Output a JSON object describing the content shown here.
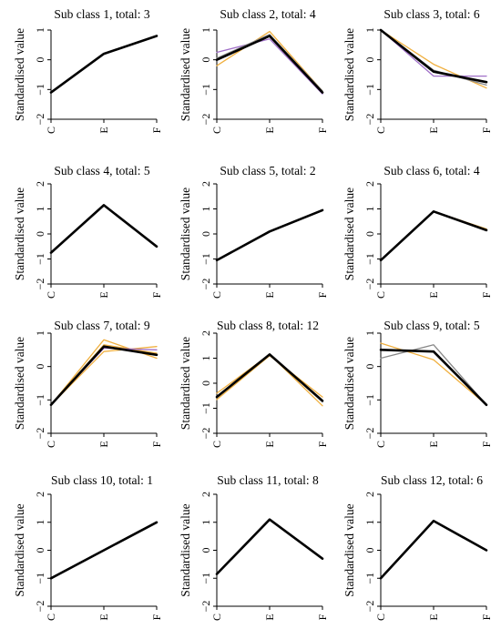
{
  "chart_data": [
    {
      "type": "line",
      "title": "Sub class 1, total: 3",
      "ylabel": "Standardised value",
      "categories": [
        "C",
        "E",
        "F"
      ],
      "yticks": [
        1,
        0,
        -1,
        -2
      ],
      "ylim": [
        -2,
        1
      ],
      "series": [
        {
          "values": [
            -1.1,
            0.2,
            0.8
          ],
          "color": "#f0b040"
        },
        {
          "values": [
            -1.1,
            0.2,
            0.8
          ],
          "color": "#a070c8"
        },
        {
          "values": [
            -1.1,
            0.2,
            0.8
          ],
          "color": "#000000",
          "mean": true
        }
      ]
    },
    {
      "type": "line",
      "title": "Sub class 2, total: 4",
      "ylabel": "Standardised value",
      "categories": [
        "C",
        "E",
        "F"
      ],
      "yticks": [
        1,
        0,
        -1,
        -2
      ],
      "ylim": [
        -2,
        1
      ],
      "series": [
        {
          "values": [
            -0.2,
            0.95,
            -1.05
          ],
          "color": "#f0b040"
        },
        {
          "values": [
            0.25,
            0.7,
            -1.15
          ],
          "color": "#a070c8"
        },
        {
          "values": [
            0.05,
            0.85,
            -1.05
          ],
          "color": "#888888"
        },
        {
          "values": [
            0.0,
            0.8,
            -1.1
          ],
          "color": "#000000",
          "mean": true
        }
      ]
    },
    {
      "type": "line",
      "title": "Sub class 3, total: 6",
      "ylabel": "Standardised value",
      "categories": [
        "C",
        "E",
        "F"
      ],
      "yticks": [
        1,
        0,
        -1,
        -2
      ],
      "ylim": [
        -2,
        1
      ],
      "series": [
        {
          "values": [
            1.0,
            -0.15,
            -0.95
          ],
          "color": "#f0b040"
        },
        {
          "values": [
            1.0,
            -0.55,
            -0.55
          ],
          "color": "#a070c8"
        },
        {
          "values": [
            1.0,
            -0.35,
            -0.85
          ],
          "color": "#888888"
        },
        {
          "values": [
            1.0,
            -0.4,
            -0.75
          ],
          "color": "#000000",
          "mean": true
        }
      ]
    },
    {
      "type": "line",
      "title": "Sub class 4, total: 5",
      "ylabel": "Standardised value",
      "categories": [
        "C",
        "E",
        "F"
      ],
      "yticks": [
        2,
        1,
        0,
        -1,
        -2
      ],
      "ylim": [
        -2,
        2
      ],
      "series": [
        {
          "values": [
            -0.75,
            1.15,
            -0.5
          ],
          "color": "#f0b040"
        },
        {
          "values": [
            -0.75,
            1.15,
            -0.5
          ],
          "color": "#000000",
          "mean": true
        }
      ]
    },
    {
      "type": "line",
      "title": "Sub class 5, total: 2",
      "ylabel": "Standardised value",
      "categories": [
        "C",
        "E",
        "F"
      ],
      "yticks": [
        2,
        1,
        0,
        -1,
        -2
      ],
      "ylim": [
        -2,
        2
      ],
      "series": [
        {
          "values": [
            -1.05,
            0.1,
            0.95
          ],
          "color": "#f0b040"
        },
        {
          "values": [
            -1.05,
            0.1,
            0.95
          ],
          "color": "#000000",
          "mean": true
        }
      ]
    },
    {
      "type": "line",
      "title": "Sub class 6, total: 4",
      "ylabel": "Standardised value",
      "categories": [
        "C",
        "E",
        "F"
      ],
      "yticks": [
        2,
        1,
        0,
        -1,
        -2
      ],
      "ylim": [
        -2,
        2
      ],
      "series": [
        {
          "values": [
            -1.05,
            0.9,
            0.2
          ],
          "color": "#f0b040"
        },
        {
          "values": [
            -1.05,
            0.9,
            0.15
          ],
          "color": "#888888"
        },
        {
          "values": [
            -1.05,
            0.9,
            0.15
          ],
          "color": "#000000",
          "mean": true
        }
      ]
    },
    {
      "type": "line",
      "title": "Sub class 7, total: 9",
      "ylabel": "Standardised value",
      "categories": [
        "C",
        "E",
        "F"
      ],
      "yticks": [
        1,
        0,
        -1,
        -2
      ],
      "ylim": [
        -2,
        1
      ],
      "series": [
        {
          "values": [
            -1.15,
            0.8,
            0.25
          ],
          "color": "#f0b040"
        },
        {
          "values": [
            -1.15,
            0.45,
            0.6
          ],
          "color": "#f0b040"
        },
        {
          "values": [
            -1.15,
            0.65,
            0.4
          ],
          "color": "#f0b040"
        },
        {
          "values": [
            -1.15,
            0.55,
            0.5
          ],
          "color": "#a070c8"
        },
        {
          "values": [
            -1.15,
            0.6,
            0.35
          ],
          "color": "#000000",
          "mean": true
        }
      ]
    },
    {
      "type": "line",
      "title": "Sub class 8, total: 12",
      "ylabel": "Standardised value",
      "categories": [
        "C",
        "E",
        "F"
      ],
      "yticks": [
        2,
        1,
        0,
        -1,
        -2
      ],
      "ylim": [
        -2,
        2
      ],
      "series": [
        {
          "values": [
            -0.4,
            1.15,
            -0.9
          ],
          "color": "#f0b040"
        },
        {
          "values": [
            -0.65,
            1.1,
            -0.55
          ],
          "color": "#f0b040"
        },
        {
          "values": [
            -0.55,
            1.15,
            -0.75
          ],
          "color": "#888888"
        },
        {
          "values": [
            -0.55,
            1.15,
            -0.7
          ],
          "color": "#000000",
          "mean": true
        }
      ]
    },
    {
      "type": "line",
      "title": "Sub class 9, total: 5",
      "ylabel": "Standardised value",
      "categories": [
        "C",
        "E",
        "F"
      ],
      "yticks": [
        1,
        0,
        -1,
        -2
      ],
      "ylim": [
        -2,
        1
      ],
      "series": [
        {
          "values": [
            0.7,
            0.2,
            -1.15
          ],
          "color": "#f0b040"
        },
        {
          "values": [
            0.25,
            0.65,
            -1.15
          ],
          "color": "#888888"
        },
        {
          "values": [
            0.5,
            0.45,
            -1.15
          ],
          "color": "#000000",
          "mean": true
        }
      ]
    },
    {
      "type": "line",
      "title": "Sub class 10, total: 1",
      "ylabel": "Standardised value",
      "categories": [
        "C",
        "E",
        "F"
      ],
      "yticks": [
        2,
        1,
        0,
        -1,
        -2
      ],
      "ylim": [
        -2,
        2
      ],
      "series": [
        {
          "values": [
            -1.0,
            0.0,
            1.0
          ],
          "color": "#000000",
          "mean": true
        }
      ]
    },
    {
      "type": "line",
      "title": "Sub class 11, total: 8",
      "ylabel": "Standardised value",
      "categories": [
        "C",
        "E",
        "F"
      ],
      "yticks": [
        2,
        1,
        0,
        -1,
        -2
      ],
      "ylim": [
        -2,
        2
      ],
      "series": [
        {
          "values": [
            -0.85,
            1.1,
            -0.3
          ],
          "color": "#f0b040"
        },
        {
          "values": [
            -0.85,
            1.1,
            -0.3
          ],
          "color": "#000000",
          "mean": true
        }
      ]
    },
    {
      "type": "line",
      "title": "Sub class 12, total: 6",
      "ylabel": "Standardised value",
      "categories": [
        "C",
        "E",
        "F"
      ],
      "yticks": [
        2,
        1,
        0,
        -1,
        -2
      ],
      "ylim": [
        -2,
        2
      ],
      "series": [
        {
          "values": [
            -1.0,
            1.05,
            0.0
          ],
          "color": "#888888"
        },
        {
          "values": [
            -1.0,
            1.05,
            0.0
          ],
          "color": "#000000",
          "mean": true
        }
      ]
    }
  ]
}
